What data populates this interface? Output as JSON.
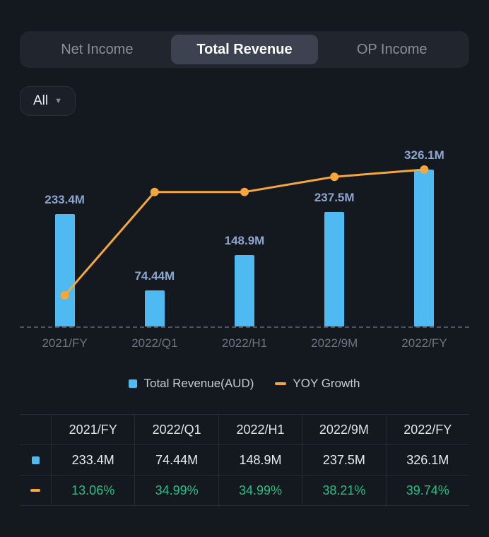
{
  "tabs": {
    "items": [
      {
        "label": "Net Income",
        "selected": false
      },
      {
        "label": "Total Revenue",
        "selected": true
      },
      {
        "label": "OP Income",
        "selected": false
      }
    ]
  },
  "filter": {
    "label": "All"
  },
  "chart_data": {
    "type": "bar",
    "categories": [
      "2021/FY",
      "2022/Q1",
      "2022/H1",
      "2022/9M",
      "2022/FY"
    ],
    "series": [
      {
        "name": "Total Revenue(AUD)",
        "type": "bar",
        "values": [
          233.4,
          74.44,
          148.9,
          237.5,
          326.1
        ],
        "labels": [
          "233.4M",
          "74.44M",
          "148.9M",
          "237.5M",
          "326.1M"
        ],
        "unit": "M",
        "color": "#4FB9F2"
      },
      {
        "name": "YOY Growth",
        "type": "line",
        "values": [
          13.06,
          34.99,
          34.99,
          38.21,
          39.74
        ],
        "labels": [
          "13.06%",
          "34.99%",
          "34.99%",
          "38.21%",
          "39.74%"
        ],
        "unit": "%",
        "color": "#F6A73C"
      }
    ],
    "title": "",
    "xlabel": "",
    "ylabel": "",
    "legend_position": "bottom",
    "grid": false,
    "baseline": "dashed"
  },
  "legend": {
    "items": [
      {
        "label": "Total Revenue(AUD)",
        "marker": "square",
        "color": "#4FB9F2"
      },
      {
        "label": "YOY Growth",
        "marker": "dash",
        "color": "#F6A73C"
      }
    ]
  },
  "table": {
    "header": [
      "",
      "2021/FY",
      "2022/Q1",
      "2022/H1",
      "2022/9M",
      "2022/FY"
    ],
    "rows": [
      {
        "marker": "bar",
        "values": [
          "233.4M",
          "74.44M",
          "148.9M",
          "237.5M",
          "326.1M"
        ]
      },
      {
        "marker": "line",
        "values": [
          "13.06%",
          "34.99%",
          "34.99%",
          "38.21%",
          "39.74%"
        ]
      }
    ]
  },
  "colors": {
    "background": "#14181F",
    "bar": "#4FB9F2",
    "line": "#F6A73C",
    "bar_label": "#8CA6CF",
    "axis_label": "#6E7480",
    "growth_green": "#2EBD85",
    "tab_selected_bg": "#3C4250",
    "table_border": "#262B35"
  }
}
